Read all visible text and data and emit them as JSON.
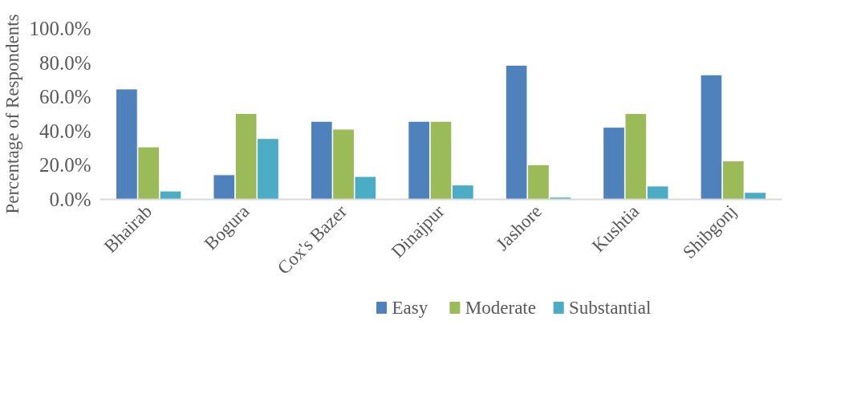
{
  "chart_data": {
    "type": "bar",
    "ylabel": "Percentage of Respondents",
    "categories": [
      "Bhairab",
      "Bogura",
      "Cox's Bazer",
      "Dinajpur",
      "Jashore",
      "Kushtia",
      "Shibgonj"
    ],
    "series": [
      {
        "name": "Easy",
        "color": "#4f81bd",
        "values": [
          64.6,
          14.4,
          45.7,
          45.7,
          78.5,
          42.2,
          72.9
        ]
      },
      {
        "name": "Moderate",
        "color": "#9bbb59",
        "values": [
          30.7,
          50.3,
          41.1,
          45.7,
          20.3,
          50.2,
          22.5
        ]
      },
      {
        "name": "Substantial",
        "color": "#4bacc6",
        "values": [
          4.9,
          35.6,
          13.4,
          8.4,
          1.3,
          7.8,
          4.1
        ]
      }
    ],
    "ylim": [
      0,
      100
    ],
    "yticks": [
      {
        "value": 0,
        "label": "0.0%"
      },
      {
        "value": 20,
        "label": "20.0%"
      },
      {
        "value": 40,
        "label": "40.0%"
      },
      {
        "value": 60,
        "label": "60.0%"
      },
      {
        "value": 80,
        "label": "80.0%"
      },
      {
        "value": 100,
        "label": "100.0%"
      }
    ],
    "grid": false,
    "legend": "bottom"
  }
}
